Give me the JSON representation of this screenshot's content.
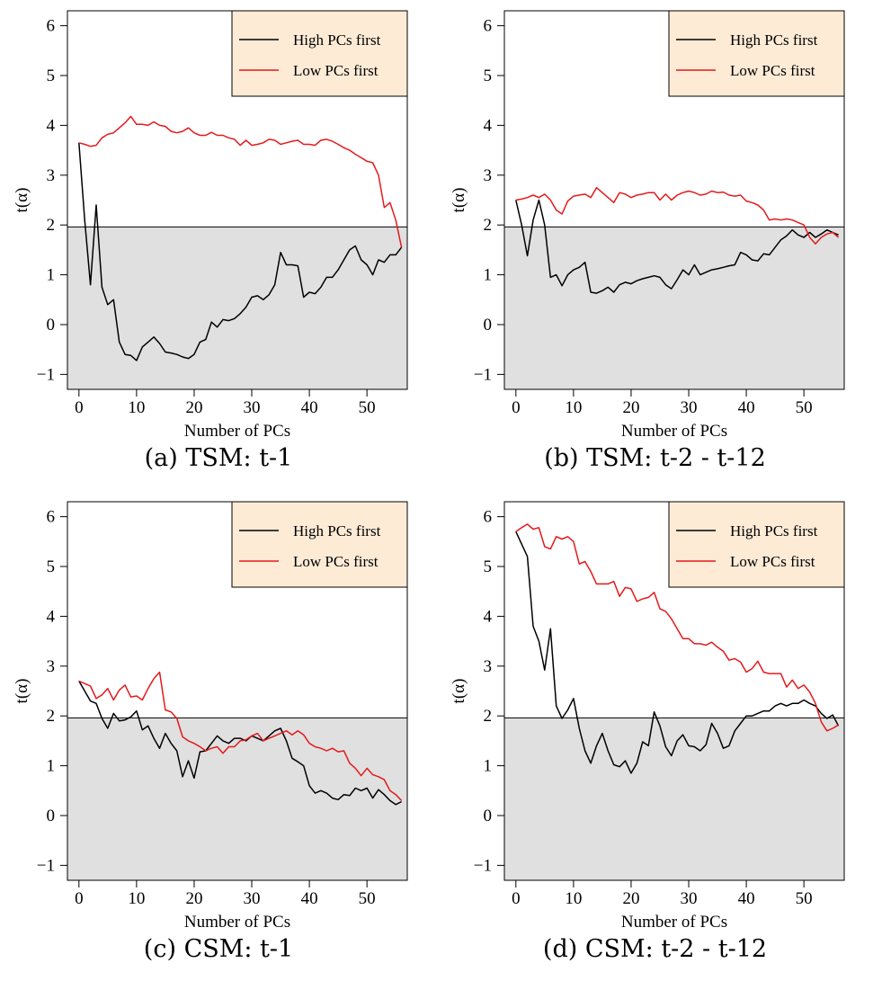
{
  "legend": {
    "items": [
      {
        "label": "High PCs first",
        "color": "#000000"
      },
      {
        "label": "Low PCs first",
        "color": "#e31a1c"
      }
    ],
    "background": "#fdebd6",
    "position": "top-right"
  },
  "colors": {
    "shaded_region": "#e0e0e0",
    "threshold_line": "#000000"
  },
  "chart_data": [
    {
      "type": "line",
      "caption": "(a) TSM: t-1",
      "xlabel": "Number of PCs",
      "ylabel": "t(α)",
      "xlim": [
        -2,
        57
      ],
      "ylim": [
        -1.3,
        6.3
      ],
      "xticks": [
        "0",
        "10",
        "20",
        "30",
        "40",
        "50"
      ],
      "yticks": [
        "−1",
        "0",
        "1",
        "2",
        "3",
        "4",
        "5",
        "6"
      ],
      "threshold": 1.96,
      "series": [
        {
          "name": "High PCs first",
          "color": "#000000",
          "x": [
            0,
            1,
            2,
            3,
            4,
            5,
            6,
            7,
            8,
            9,
            10,
            11,
            12,
            13,
            14,
            15,
            16,
            17,
            18,
            19,
            20,
            21,
            22,
            23,
            24,
            25,
            26,
            27,
            28,
            29,
            30,
            31,
            32,
            33,
            34,
            35,
            36,
            37,
            38,
            39,
            40,
            41,
            42,
            43,
            44,
            45,
            46,
            47,
            48,
            49,
            50,
            51,
            52,
            53,
            54,
            55,
            56
          ],
          "values": [
            3.65,
            2.1,
            0.8,
            2.4,
            0.75,
            0.4,
            0.5,
            -0.35,
            -0.6,
            -0.62,
            -0.72,
            -0.45,
            -0.35,
            -0.25,
            -0.38,
            -0.55,
            -0.57,
            -0.6,
            -0.65,
            -0.68,
            -0.6,
            -0.35,
            -0.3,
            0.05,
            -0.05,
            0.1,
            0.08,
            0.12,
            0.22,
            0.35,
            0.55,
            0.58,
            0.5,
            0.6,
            0.8,
            1.45,
            1.2,
            1.2,
            1.18,
            0.55,
            0.65,
            0.62,
            0.75,
            0.95,
            0.95,
            1.1,
            1.3,
            1.5,
            1.58,
            1.3,
            1.2,
            1.0,
            1.3,
            1.25,
            1.4,
            1.4,
            1.55
          ]
        },
        {
          "name": "Low PCs first",
          "color": "#e31a1c",
          "x": [
            0,
            1,
            2,
            3,
            4,
            5,
            6,
            7,
            8,
            9,
            10,
            11,
            12,
            13,
            14,
            15,
            16,
            17,
            18,
            19,
            20,
            21,
            22,
            23,
            24,
            25,
            26,
            27,
            28,
            29,
            30,
            31,
            32,
            33,
            34,
            35,
            36,
            37,
            38,
            39,
            40,
            41,
            42,
            43,
            44,
            45,
            46,
            47,
            48,
            49,
            50,
            51,
            52,
            53,
            54,
            55,
            56
          ],
          "values": [
            3.65,
            3.62,
            3.58,
            3.6,
            3.75,
            3.82,
            3.85,
            3.95,
            4.05,
            4.18,
            4.02,
            4.02,
            4.0,
            4.07,
            4.0,
            3.98,
            3.88,
            3.85,
            3.88,
            3.95,
            3.85,
            3.8,
            3.8,
            3.86,
            3.8,
            3.8,
            3.75,
            3.72,
            3.6,
            3.7,
            3.6,
            3.62,
            3.65,
            3.72,
            3.7,
            3.62,
            3.65,
            3.68,
            3.7,
            3.62,
            3.62,
            3.6,
            3.7,
            3.72,
            3.68,
            3.62,
            3.55,
            3.5,
            3.42,
            3.35,
            3.28,
            3.25,
            3.0,
            2.35,
            2.45,
            2.1,
            1.55
          ]
        }
      ]
    },
    {
      "type": "line",
      "caption": "(b) TSM: t-2 - t-12",
      "xlabel": "Number of PCs",
      "ylabel": "t(α)",
      "xlim": [
        -2,
        57
      ],
      "ylim": [
        -1.3,
        6.3
      ],
      "xticks": [
        "0",
        "10",
        "20",
        "30",
        "40",
        "50"
      ],
      "yticks": [
        "−1",
        "0",
        "1",
        "2",
        "3",
        "4",
        "5",
        "6"
      ],
      "threshold": 1.96,
      "series": [
        {
          "name": "High PCs first",
          "color": "#000000",
          "x": [
            0,
            1,
            2,
            3,
            4,
            5,
            6,
            7,
            8,
            9,
            10,
            11,
            12,
            13,
            14,
            15,
            16,
            17,
            18,
            19,
            20,
            21,
            22,
            23,
            24,
            25,
            26,
            27,
            28,
            29,
            30,
            31,
            32,
            33,
            34,
            35,
            36,
            37,
            38,
            39,
            40,
            41,
            42,
            43,
            44,
            45,
            46,
            47,
            48,
            49,
            50,
            51,
            52,
            53,
            54,
            55,
            56
          ],
          "values": [
            2.5,
            2.0,
            1.38,
            2.1,
            2.5,
            2.0,
            0.95,
            1.0,
            0.78,
            1.0,
            1.1,
            1.15,
            1.25,
            0.65,
            0.63,
            0.68,
            0.75,
            0.65,
            0.8,
            0.85,
            0.82,
            0.88,
            0.92,
            0.95,
            0.98,
            0.95,
            0.8,
            0.72,
            0.9,
            1.1,
            1.0,
            1.2,
            1.0,
            1.05,
            1.1,
            1.12,
            1.15,
            1.18,
            1.2,
            1.45,
            1.4,
            1.3,
            1.28,
            1.42,
            1.4,
            1.55,
            1.7,
            1.78,
            1.9,
            1.8,
            1.75,
            1.85,
            1.75,
            1.82,
            1.9,
            1.85,
            1.8
          ]
        },
        {
          "name": "Low PCs first",
          "color": "#e31a1c",
          "x": [
            0,
            1,
            2,
            3,
            4,
            5,
            6,
            7,
            8,
            9,
            10,
            11,
            12,
            13,
            14,
            15,
            16,
            17,
            18,
            19,
            20,
            21,
            22,
            23,
            24,
            25,
            26,
            27,
            28,
            29,
            30,
            31,
            32,
            33,
            34,
            35,
            36,
            37,
            38,
            39,
            40,
            41,
            42,
            43,
            44,
            45,
            46,
            47,
            48,
            49,
            50,
            51,
            52,
            53,
            54,
            55,
            56
          ],
          "values": [
            2.5,
            2.52,
            2.55,
            2.6,
            2.55,
            2.62,
            2.5,
            2.3,
            2.22,
            2.48,
            2.58,
            2.6,
            2.62,
            2.55,
            2.75,
            2.65,
            2.55,
            2.45,
            2.65,
            2.62,
            2.55,
            2.6,
            2.62,
            2.65,
            2.65,
            2.5,
            2.62,
            2.5,
            2.6,
            2.65,
            2.68,
            2.65,
            2.6,
            2.62,
            2.68,
            2.65,
            2.66,
            2.6,
            2.58,
            2.6,
            2.48,
            2.45,
            2.4,
            2.3,
            2.1,
            2.12,
            2.1,
            2.12,
            2.1,
            2.05,
            2.0,
            1.75,
            1.62,
            1.75,
            1.82,
            1.85,
            1.75
          ]
        }
      ]
    },
    {
      "type": "line",
      "caption": "(c) CSM: t-1",
      "xlabel": "Number of PCs",
      "ylabel": "t(α)",
      "xlim": [
        -2,
        57
      ],
      "ylim": [
        -1.3,
        6.3
      ],
      "xticks": [
        "0",
        "10",
        "20",
        "30",
        "40",
        "50"
      ],
      "yticks": [
        "−1",
        "0",
        "1",
        "2",
        "3",
        "4",
        "5",
        "6"
      ],
      "threshold": 1.96,
      "series": [
        {
          "name": "High PCs first",
          "color": "#000000",
          "x": [
            0,
            1,
            2,
            3,
            4,
            5,
            6,
            7,
            8,
            9,
            10,
            11,
            12,
            13,
            14,
            15,
            16,
            17,
            18,
            19,
            20,
            21,
            22,
            23,
            24,
            25,
            26,
            27,
            28,
            29,
            30,
            31,
            32,
            33,
            34,
            35,
            36,
            37,
            38,
            39,
            40,
            41,
            42,
            43,
            44,
            45,
            46,
            47,
            48,
            49,
            50,
            51,
            52,
            53,
            54,
            55,
            56
          ],
          "values": [
            2.7,
            2.5,
            2.3,
            2.25,
            1.95,
            1.75,
            2.05,
            1.9,
            1.92,
            1.98,
            2.1,
            1.72,
            1.8,
            1.55,
            1.35,
            1.65,
            1.45,
            1.3,
            0.78,
            1.1,
            0.75,
            1.28,
            1.3,
            1.45,
            1.6,
            1.5,
            1.45,
            1.55,
            1.55,
            1.5,
            1.6,
            1.55,
            1.5,
            1.6,
            1.7,
            1.75,
            1.5,
            1.15,
            1.08,
            1.0,
            0.6,
            0.45,
            0.5,
            0.45,
            0.35,
            0.32,
            0.42,
            0.4,
            0.55,
            0.5,
            0.55,
            0.35,
            0.52,
            0.42,
            0.3,
            0.22,
            0.28
          ]
        },
        {
          "name": "Low PCs first",
          "color": "#e31a1c",
          "x": [
            0,
            1,
            2,
            3,
            4,
            5,
            6,
            7,
            8,
            9,
            10,
            11,
            12,
            13,
            14,
            15,
            16,
            17,
            18,
            19,
            20,
            21,
            22,
            23,
            24,
            25,
            26,
            27,
            28,
            29,
            30,
            31,
            32,
            33,
            34,
            35,
            36,
            37,
            38,
            39,
            40,
            41,
            42,
            43,
            44,
            45,
            46,
            47,
            48,
            49,
            50,
            51,
            52,
            53,
            54,
            55,
            56
          ],
          "values": [
            2.7,
            2.65,
            2.6,
            2.35,
            2.42,
            2.55,
            2.32,
            2.52,
            2.62,
            2.38,
            2.4,
            2.32,
            2.55,
            2.75,
            2.88,
            2.12,
            2.08,
            1.95,
            1.58,
            1.5,
            1.45,
            1.38,
            1.3,
            1.35,
            1.38,
            1.25,
            1.38,
            1.38,
            1.5,
            1.52,
            1.6,
            1.65,
            1.5,
            1.55,
            1.6,
            1.65,
            1.7,
            1.62,
            1.7,
            1.62,
            1.45,
            1.38,
            1.35,
            1.3,
            1.35,
            1.28,
            1.3,
            1.05,
            0.95,
            0.8,
            0.95,
            0.82,
            0.78,
            0.72,
            0.5,
            0.42,
            0.3
          ]
        }
      ]
    },
    {
      "type": "line",
      "caption": "(d) CSM: t-2 - t-12",
      "xlabel": "Number of PCs",
      "ylabel": "t(α)",
      "xlim": [
        -2,
        57
      ],
      "ylim": [
        -1.3,
        6.3
      ],
      "xticks": [
        "0",
        "10",
        "20",
        "30",
        "40",
        "50"
      ],
      "yticks": [
        "−1",
        "0",
        "1",
        "2",
        "3",
        "4",
        "5",
        "6"
      ],
      "threshold": 1.96,
      "series": [
        {
          "name": "High PCs first",
          "color": "#000000",
          "x": [
            0,
            1,
            2,
            3,
            4,
            5,
            6,
            7,
            8,
            9,
            10,
            11,
            12,
            13,
            14,
            15,
            16,
            17,
            18,
            19,
            20,
            21,
            22,
            23,
            24,
            25,
            26,
            27,
            28,
            29,
            30,
            31,
            32,
            33,
            34,
            35,
            36,
            37,
            38,
            39,
            40,
            41,
            42,
            43,
            44,
            45,
            46,
            47,
            48,
            49,
            50,
            51,
            52,
            53,
            54,
            55,
            56
          ],
          "values": [
            5.7,
            5.45,
            5.2,
            3.8,
            3.5,
            2.92,
            3.75,
            2.2,
            1.95,
            2.12,
            2.35,
            1.75,
            1.3,
            1.05,
            1.4,
            1.65,
            1.3,
            1.02,
            0.98,
            1.1,
            0.85,
            1.05,
            1.48,
            1.4,
            2.08,
            1.8,
            1.38,
            1.2,
            1.5,
            1.62,
            1.4,
            1.38,
            1.3,
            1.42,
            1.85,
            1.65,
            1.35,
            1.4,
            1.7,
            1.85,
            2.0,
            2.0,
            2.05,
            2.1,
            2.1,
            2.2,
            2.25,
            2.2,
            2.25,
            2.25,
            2.32,
            2.25,
            2.2,
            2.05,
            1.95,
            2.02,
            1.8
          ]
        },
        {
          "name": "Low PCs first",
          "color": "#e31a1c",
          "x": [
            0,
            1,
            2,
            3,
            4,
            5,
            6,
            7,
            8,
            9,
            10,
            11,
            12,
            13,
            14,
            15,
            16,
            17,
            18,
            19,
            20,
            21,
            22,
            23,
            24,
            25,
            26,
            27,
            28,
            29,
            30,
            31,
            32,
            33,
            34,
            35,
            36,
            37,
            38,
            39,
            40,
            41,
            42,
            43,
            44,
            45,
            46,
            47,
            48,
            49,
            50,
            51,
            52,
            53,
            54,
            55,
            56
          ],
          "values": [
            5.7,
            5.78,
            5.85,
            5.75,
            5.78,
            5.4,
            5.35,
            5.6,
            5.55,
            5.6,
            5.5,
            5.05,
            5.1,
            4.9,
            4.65,
            4.65,
            4.65,
            4.7,
            4.4,
            4.58,
            4.55,
            4.3,
            4.35,
            4.38,
            4.48,
            4.15,
            4.1,
            3.95,
            3.75,
            3.55,
            3.55,
            3.45,
            3.45,
            3.42,
            3.48,
            3.38,
            3.3,
            3.12,
            3.15,
            3.08,
            2.88,
            2.95,
            3.1,
            2.88,
            2.85,
            2.85,
            2.85,
            2.58,
            2.72,
            2.55,
            2.62,
            2.48,
            2.25,
            1.88,
            1.7,
            1.75,
            1.82
          ]
        }
      ]
    }
  ]
}
